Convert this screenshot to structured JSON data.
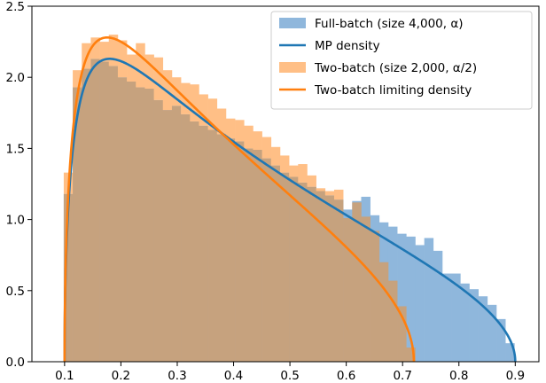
{
  "chart_data": {
    "type": "histogram+line",
    "title": "",
    "xlabel": "",
    "ylabel": "",
    "xlim": [
      0.042,
      0.942
    ],
    "ylim": [
      0,
      2.5
    ],
    "xticks": [
      0.1,
      0.2,
      0.3,
      0.4,
      0.5,
      0.6,
      0.7,
      0.8,
      0.9
    ],
    "xtick_labels": [
      "0.1",
      "0.2",
      "0.3",
      "0.4",
      "0.5",
      "0.6",
      "0.7",
      "0.8",
      "0.9"
    ],
    "yticks": [
      0.0,
      0.5,
      1.0,
      1.5,
      2.0,
      2.5
    ],
    "ytick_labels": [
      "0.0",
      "0.5",
      "1.0",
      "1.5",
      "2.0",
      "2.5"
    ],
    "grid": false,
    "legend_position": "top-right",
    "legend": [
      {
        "label": "Full-batch (size 4,000, α)",
        "kind": "patch",
        "color": "#8fb7dc"
      },
      {
        "label": "MP density",
        "kind": "line",
        "color": "#1f77b4"
      },
      {
        "label": "Two-batch (size 2,000, α/2)",
        "kind": "patch",
        "color": "#ffbf86"
      },
      {
        "label": "Two-batch limiting density",
        "kind": "line",
        "color": "#ff7f0e"
      }
    ],
    "colors": {
      "full_batch_fill": "#8fb7dc",
      "two_batch_fill": "#ffbf86",
      "overlap_fill": "#c6a27e",
      "mp_line": "#1f77b4",
      "two_batch_line": "#ff7f0e"
    },
    "full_batch_histogram": {
      "bin_edges": [
        0.0985,
        0.1145,
        0.1305,
        0.1465,
        0.1625,
        0.1785,
        0.1945,
        0.2105,
        0.2265,
        0.2425,
        0.2585,
        0.2745,
        0.2905,
        0.3065,
        0.3225,
        0.3385,
        0.3545,
        0.3705,
        0.3865,
        0.4025,
        0.4185,
        0.4345,
        0.4505,
        0.4665,
        0.4825,
        0.4985,
        0.5145,
        0.5305,
        0.5465,
        0.5625,
        0.5785,
        0.5945,
        0.6105,
        0.6265,
        0.6425,
        0.6585,
        0.6745,
        0.6905,
        0.7065,
        0.7225,
        0.7385,
        0.7545,
        0.7705,
        0.7865,
        0.8025,
        0.8185,
        0.8345,
        0.8505,
        0.8665,
        0.8825,
        0.8985
      ],
      "values": [
        1.18,
        1.93,
        2.06,
        2.13,
        2.11,
        2.08,
        2.0,
        1.97,
        1.93,
        1.92,
        1.84,
        1.77,
        1.8,
        1.74,
        1.69,
        1.66,
        1.63,
        1.6,
        1.57,
        1.55,
        1.5,
        1.49,
        1.43,
        1.38,
        1.33,
        1.3,
        1.26,
        1.23,
        1.2,
        1.17,
        1.14,
        1.07,
        1.13,
        1.16,
        1.03,
        0.98,
        0.95,
        0.9,
        0.88,
        0.82,
        0.87,
        0.78,
        0.62,
        0.62,
        0.55,
        0.51,
        0.46,
        0.4,
        0.3,
        0.13
      ]
    },
    "two_batch_histogram": {
      "bin_edges": [
        0.0985,
        0.1145,
        0.1305,
        0.1465,
        0.1625,
        0.1785,
        0.1945,
        0.2105,
        0.2265,
        0.2425,
        0.2585,
        0.2745,
        0.2905,
        0.3065,
        0.3225,
        0.3385,
        0.3545,
        0.3705,
        0.3865,
        0.4025,
        0.4185,
        0.4345,
        0.4505,
        0.4665,
        0.4825,
        0.4985,
        0.5145,
        0.5305,
        0.5465,
        0.5625,
        0.5785,
        0.5945,
        0.6105,
        0.6265,
        0.6425,
        0.6585,
        0.6745,
        0.6905,
        0.7065,
        0.7225
      ],
      "values": [
        1.33,
        2.05,
        2.24,
        2.28,
        2.25,
        2.3,
        2.26,
        2.16,
        2.24,
        2.16,
        2.14,
        2.05,
        2.0,
        1.96,
        1.95,
        1.88,
        1.85,
        1.78,
        1.71,
        1.7,
        1.66,
        1.62,
        1.58,
        1.51,
        1.45,
        1.38,
        1.39,
        1.31,
        1.22,
        1.2,
        1.21,
        1.01,
        1.12,
        1.02,
        0.92,
        0.7,
        0.57,
        0.39,
        0.1
      ]
    },
    "mp_density": {
      "lambda_min": 0.1,
      "lambda_max": 0.9,
      "peak": {
        "x": 0.19,
        "y": 2.13
      }
    },
    "two_batch_limiting_density": {
      "lambda_min": 0.1,
      "lambda_max": 0.72,
      "peak": {
        "x": 0.19,
        "y": 2.28
      }
    }
  }
}
